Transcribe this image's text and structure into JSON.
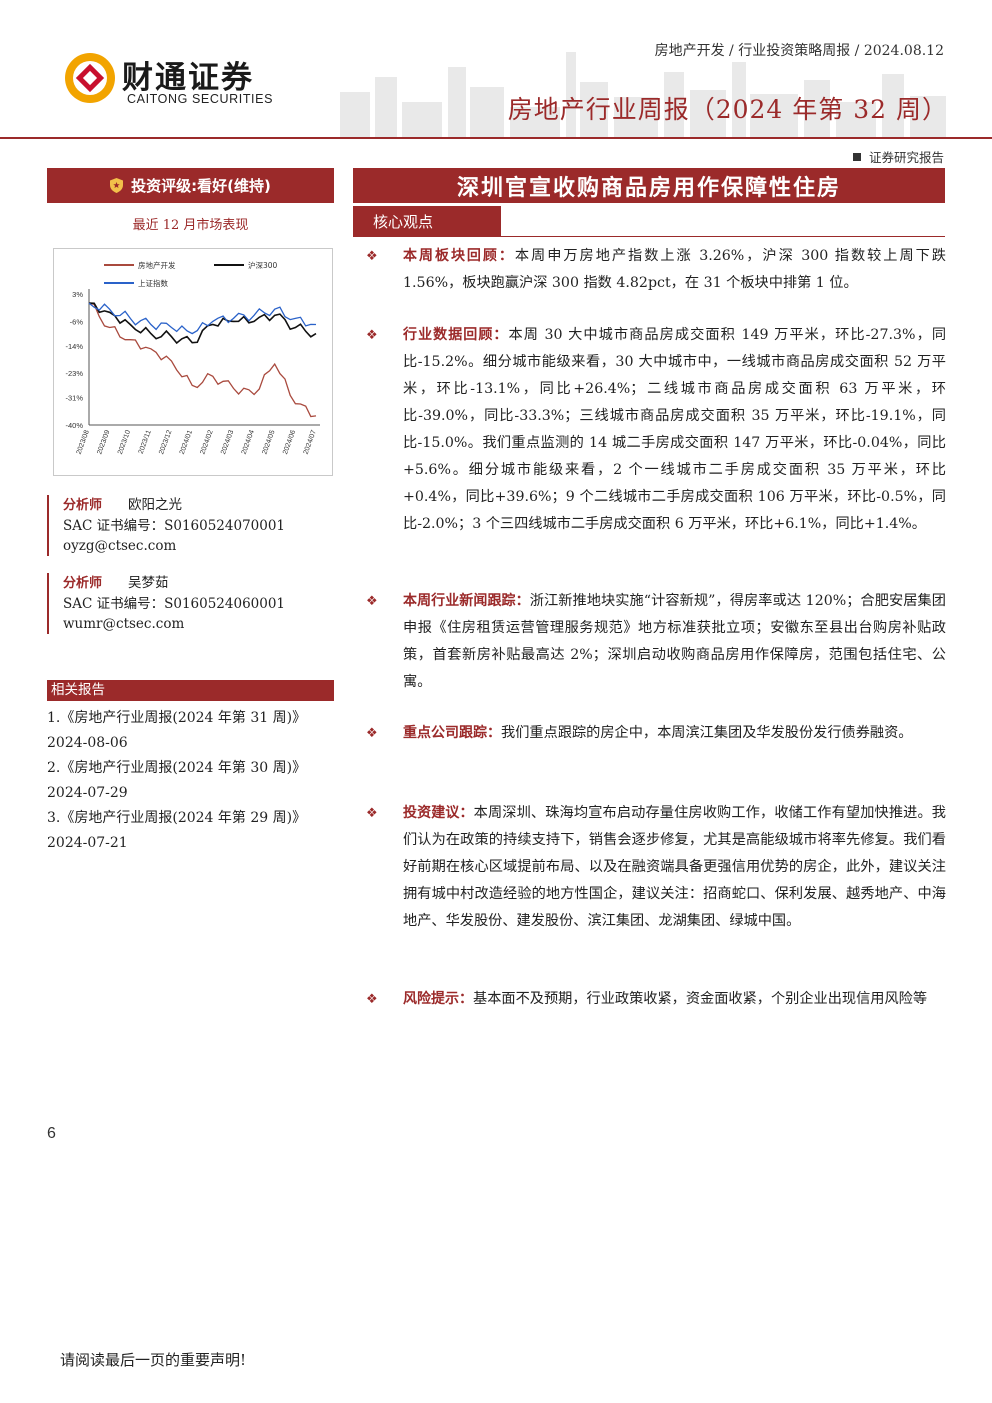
{
  "header": {
    "brand_cn": "财通证券",
    "brand_en": "CAITONG SECURITIES",
    "breadcrumb": "房地产开发 / 行业投资策略周报 / 2024.08.12",
    "report_title": "房地产行业周报（2024 年第 32 周）",
    "report_type": "证券研究报告",
    "accent_color": "#9b2a2a"
  },
  "left": {
    "rating": "投资评级:看好(维持)",
    "chart_caption": "最近 12 月市场表现",
    "analysts": [
      {
        "label": "分析师",
        "name": "欧阳之光",
        "cert": "SAC 证书编号：S0160524070001",
        "email": "oyzg@ctsec.com"
      },
      {
        "label": "分析师",
        "name": "吴梦茹",
        "cert": "SAC 证书编号：S0160524060001",
        "email": "wumr@ctsec.com"
      }
    ],
    "related_heading": "相关报告",
    "related": [
      {
        "title": "1.《房地产行业周报(2024 年第 31 周)》",
        "date": "2024-08-06"
      },
      {
        "title": "2.《房地产行业周报(2024 年第 30 周)》",
        "date": "2024-07-29"
      },
      {
        "title": "3.《房地产行业周报(2024 年第 29 周)》",
        "date": "2024-07-21"
      }
    ]
  },
  "chart_data": {
    "type": "line",
    "title": "",
    "x": [
      "2023/08",
      "2023/09",
      "2023/10",
      "2023/11",
      "2023/12",
      "2024/01",
      "2024/02",
      "2024/03",
      "2024/04",
      "2024/05",
      "2024/06",
      "2024/07"
    ],
    "ylim": [
      -40,
      3
    ],
    "yticks": [
      "3%",
      "-6%",
      "-14%",
      "-23%",
      "-31%",
      "-40%"
    ],
    "ytick_values": [
      3,
      -6,
      -14,
      -23,
      -31,
      -40
    ],
    "legend_placement": "top",
    "series": [
      {
        "name": "房地产开发",
        "color": "#a94a3e",
        "values": [
          0,
          -8,
          -12,
          -15,
          -19,
          -27,
          -24,
          -28,
          -30,
          -20,
          -33,
          -37
        ]
      },
      {
        "name": "沪深300",
        "color": "#111111",
        "values": [
          0,
          -3,
          -7,
          -10,
          -11,
          -13,
          -7,
          -6,
          -6,
          -4,
          -8,
          -10
        ]
      },
      {
        "name": "上证指数",
        "color": "#2a62c9",
        "values": [
          0,
          -2,
          -5,
          -7,
          -8,
          -10,
          -6,
          -5,
          -4,
          -2,
          -5,
          -7
        ]
      }
    ]
  },
  "main": {
    "title": "深圳官宣收购商品房用作保障性住房",
    "core_heading": "核心观点",
    "bullets": [
      {
        "label": "本周板块回顾：",
        "text": "本周申万房地产指数上涨 3.26%，沪深 300 指数较上周下跌 1.56%，板块跑赢沪深 300 指数 4.82pct，在 31 个板块中排第 1 位。"
      },
      {
        "label": "行业数据回顾：",
        "text": "本周 30 大中城市商品房成交面积 149 万平米，环比-27.3%，同比-15.2%。细分城市能级来看，30 大中城市中，一线城市商品房成交面积 52 万平米，环比-13.1%，同比+26.4%；二线城市商品房成交面积 63 万平米，环比-39.0%，同比-33.3%；三线城市商品房成交面积 35 万平米，环比-19.1%，同比-15.0%。我们重点监测的 14 城二手房成交面积 147 万平米，环比-0.04%，同比+5.6%。细分城市能级来看，2 个一线城市二手房成交面积 35 万平米，环比+0.4%，同比+39.6%；9 个二线城市二手房成交面积 106 万平米，环比-0.5%，同比-2.0%；3 个三四线城市二手房成交面积 6 万平米，环比+6.1%，同比+1.4%。"
      },
      {
        "label": "本周行业新闻跟踪：",
        "text": "浙江新推地块实施“计容新规”，得房率或达 120%；合肥安居集团申报《住房租赁运营管理服务规范》地方标准获批立项；安徽东至县出台购房补贴政策，首套新房补贴最高达 2%；深圳启动收购商品房用作保障房，范围包括住宅、公寓。"
      },
      {
        "label": "重点公司跟踪：",
        "text": "我们重点跟踪的房企中，本周滨江集团及华发股份发行债券融资。"
      },
      {
        "label": "投资建议：",
        "text": "本周深圳、珠海均宣布启动存量住房收购工作，收储工作有望加快推进。我们认为在政策的持续支持下，销售会逐步修复，尤其是高能级城市将率先修复。我们看好前期在核心区域提前布局、以及在融资端具备更强信用优势的房企，此外，建议关注拥有城中村改造经验的地方性国企，建议关注：招商蛇口、保利发展、越秀地产、中海地产、华发股份、建发股份、滨江集团、龙湖集团、绿城中国。"
      },
      {
        "label": "风险提示：",
        "text": "基本面不及预期，行业政策收紧，资金面收紧，个别企业出现信用风险等"
      }
    ]
  },
  "footer": {
    "page_number": "6",
    "note": "请阅读最后一页的重要声明!"
  }
}
